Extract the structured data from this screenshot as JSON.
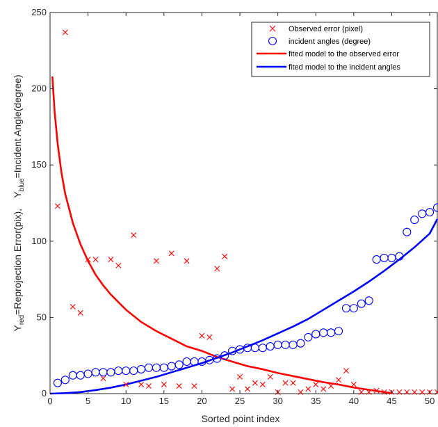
{
  "chart_data": {
    "type": "scatter",
    "xlabel": "Sorted point index",
    "ylabel_parts": {
      "p1": "Y",
      "p1_sub": "red",
      "p2": "=Reprojection Error(pix),    Y",
      "p2_sub": "blue",
      "p3": "=Incident Angle(degree)"
    },
    "xlim": [
      0,
      51
    ],
    "ylim": [
      0,
      250
    ],
    "xticks": [
      "0",
      "5",
      "10",
      "15",
      "20",
      "25",
      "30",
      "35",
      "40",
      "45",
      "50"
    ],
    "yticks": [
      "0",
      "50",
      "100",
      "150",
      "200",
      "250"
    ],
    "grid": false,
    "legend_position": "top-right",
    "colors": {
      "red": "#ff0000",
      "blue": "#0000ff",
      "axis": "#262626"
    },
    "series": [
      {
        "name": "Observed error (pixel)",
        "marker": "x",
        "color": "#ff0000",
        "points": [
          [
            1,
            123
          ],
          [
            2,
            237
          ],
          [
            3,
            57
          ],
          [
            4,
            53
          ],
          [
            5,
            88
          ],
          [
            6,
            88
          ],
          [
            7,
            10
          ],
          [
            8,
            88
          ],
          [
            9,
            84
          ],
          [
            10,
            6
          ],
          [
            11,
            104
          ],
          [
            12,
            6
          ],
          [
            13,
            5
          ],
          [
            14,
            87
          ],
          [
            15,
            6
          ],
          [
            16,
            92
          ],
          [
            17,
            5
          ],
          [
            18,
            87
          ],
          [
            19,
            5
          ],
          [
            20,
            38
          ],
          [
            21,
            37
          ],
          [
            22,
            82
          ],
          [
            23,
            90
          ],
          [
            24,
            3
          ],
          [
            25,
            11
          ],
          [
            26,
            3
          ],
          [
            27,
            7
          ],
          [
            28,
            6
          ],
          [
            29,
            11
          ],
          [
            30,
            1
          ],
          [
            31,
            7
          ],
          [
            32,
            7
          ],
          [
            33,
            1
          ],
          [
            34,
            3
          ],
          [
            35,
            6
          ],
          [
            36,
            3
          ],
          [
            37,
            5
          ],
          [
            38,
            9
          ],
          [
            39,
            15
          ],
          [
            40,
            6
          ],
          [
            41,
            1
          ],
          [
            42,
            1
          ],
          [
            43,
            2
          ],
          [
            44,
            1
          ],
          [
            45,
            1
          ],
          [
            46,
            1
          ],
          [
            47,
            1
          ],
          [
            48,
            1
          ],
          [
            49,
            1
          ],
          [
            50,
            1
          ],
          [
            51,
            1
          ]
        ]
      },
      {
        "name": "incident angles (degree)",
        "marker": "o",
        "color": "#0000ff",
        "points": [
          [
            1,
            7
          ],
          [
            2,
            9
          ],
          [
            3,
            12
          ],
          [
            4,
            12
          ],
          [
            5,
            13
          ],
          [
            6,
            14
          ],
          [
            7,
            14
          ],
          [
            8,
            14
          ],
          [
            9,
            15
          ],
          [
            10,
            15
          ],
          [
            11,
            15
          ],
          [
            12,
            16
          ],
          [
            13,
            17
          ],
          [
            14,
            17
          ],
          [
            15,
            17
          ],
          [
            16,
            18
          ],
          [
            17,
            19
          ],
          [
            18,
            21
          ],
          [
            19,
            21
          ],
          [
            20,
            21
          ],
          [
            21,
            22
          ],
          [
            22,
            23
          ],
          [
            23,
            25
          ],
          [
            24,
            28
          ],
          [
            25,
            29
          ],
          [
            26,
            30
          ],
          [
            27,
            30
          ],
          [
            28,
            30
          ],
          [
            29,
            31
          ],
          [
            30,
            32
          ],
          [
            31,
            32
          ],
          [
            32,
            32
          ],
          [
            33,
            33
          ],
          [
            34,
            37
          ],
          [
            35,
            39
          ],
          [
            36,
            40
          ],
          [
            37,
            40
          ],
          [
            38,
            41
          ],
          [
            39,
            56
          ],
          [
            40,
            56
          ],
          [
            41,
            59
          ],
          [
            42,
            61
          ],
          [
            43,
            88
          ],
          [
            44,
            89
          ],
          [
            45,
            89
          ],
          [
            46,
            90
          ],
          [
            47,
            106
          ],
          [
            48,
            114
          ],
          [
            49,
            118
          ],
          [
            50,
            119
          ],
          [
            51,
            122
          ]
        ]
      },
      {
        "name": "fited model to the observed error",
        "type": "line",
        "color": "#ff0000",
        "points": [
          [
            0.3,
            208
          ],
          [
            0.6,
            185
          ],
          [
            1,
            164
          ],
          [
            1.5,
            145
          ],
          [
            2,
            131
          ],
          [
            3,
            112
          ],
          [
            4,
            98
          ],
          [
            5,
            87
          ],
          [
            6,
            78
          ],
          [
            7,
            71
          ],
          [
            8,
            65
          ],
          [
            10,
            55
          ],
          [
            12,
            47
          ],
          [
            14,
            41
          ],
          [
            16,
            36
          ],
          [
            18,
            31
          ],
          [
            20,
            28
          ],
          [
            22,
            24
          ],
          [
            24,
            21
          ],
          [
            26,
            18
          ],
          [
            28,
            16
          ],
          [
            30,
            13.5
          ],
          [
            32,
            11.5
          ],
          [
            34,
            9.5
          ],
          [
            36,
            7.5
          ],
          [
            38,
            6
          ],
          [
            40,
            4
          ],
          [
            42,
            2.5
          ],
          [
            44,
            1
          ],
          [
            45,
            0.3
          ]
        ]
      },
      {
        "name": "fited model to the incident angles",
        "type": "line",
        "color": "#0000ff",
        "points": [
          [
            0,
            0
          ],
          [
            2,
            0.3
          ],
          [
            4,
            1
          ],
          [
            6,
            2.3
          ],
          [
            8,
            3.9
          ],
          [
            10,
            6
          ],
          [
            12,
            8.5
          ],
          [
            14,
            11
          ],
          [
            16,
            14
          ],
          [
            18,
            17
          ],
          [
            20,
            20
          ],
          [
            22,
            23.5
          ],
          [
            24,
            27
          ],
          [
            26,
            31
          ],
          [
            28,
            35
          ],
          [
            30,
            39.5
          ],
          [
            32,
            44
          ],
          [
            34,
            49
          ],
          [
            36,
            55
          ],
          [
            38,
            61
          ],
          [
            40,
            67
          ],
          [
            42,
            73.5
          ],
          [
            44,
            80.5
          ],
          [
            46,
            88
          ],
          [
            48,
            96
          ],
          [
            50,
            105
          ],
          [
            51,
            114.5
          ]
        ]
      }
    ]
  }
}
